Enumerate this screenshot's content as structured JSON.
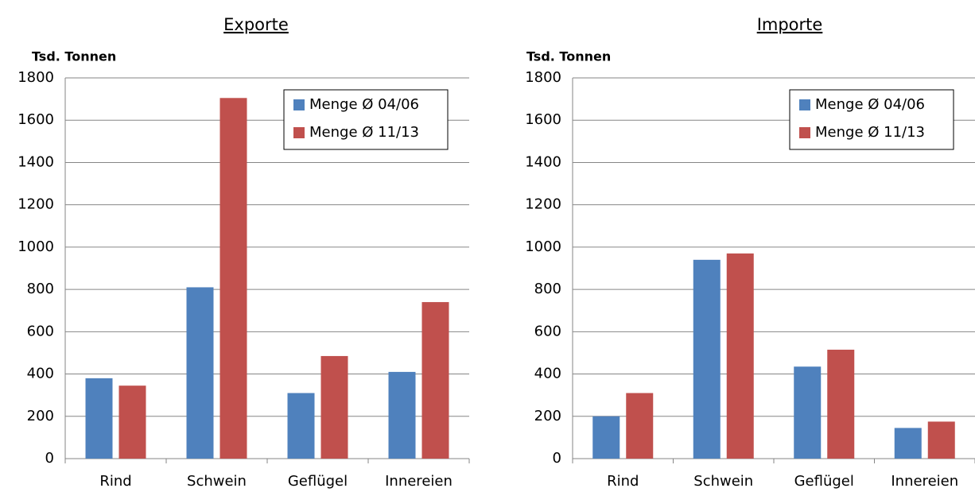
{
  "chart_data": [
    {
      "type": "bar",
      "title": "Exporte",
      "y_label": "Tsd. Tonnen",
      "categories": [
        "Rind",
        "Schwein",
        "Geflügel",
        "Innereien"
      ],
      "series": [
        {
          "name": "Menge Ø 04/06",
          "color": "#4f81bd",
          "values": [
            380,
            810,
            310,
            410
          ]
        },
        {
          "name": "Menge Ø 11/13",
          "color": "#c0504d",
          "values": [
            345,
            1705,
            485,
            740
          ]
        }
      ],
      "ylim": [
        0,
        1800
      ],
      "yticks": [
        0,
        200,
        400,
        600,
        800,
        1000,
        1200,
        1400,
        1600,
        1800
      ],
      "grid": true,
      "legend": "upper right"
    },
    {
      "type": "bar",
      "title": "Importe",
      "y_label": "Tsd. Tonnen",
      "categories": [
        "Rind",
        "Schwein",
        "Geflügel",
        "Innereien"
      ],
      "series": [
        {
          "name": "Menge Ø 04/06",
          "color": "#4f81bd",
          "values": [
            200,
            940,
            435,
            145
          ]
        },
        {
          "name": "Menge Ø 11/13",
          "color": "#c0504d",
          "values": [
            310,
            970,
            515,
            175
          ]
        }
      ],
      "ylim": [
        0,
        1800
      ],
      "yticks": [
        0,
        200,
        400,
        600,
        800,
        1000,
        1200,
        1400,
        1600,
        1800
      ],
      "grid": true,
      "legend": "upper right"
    }
  ]
}
